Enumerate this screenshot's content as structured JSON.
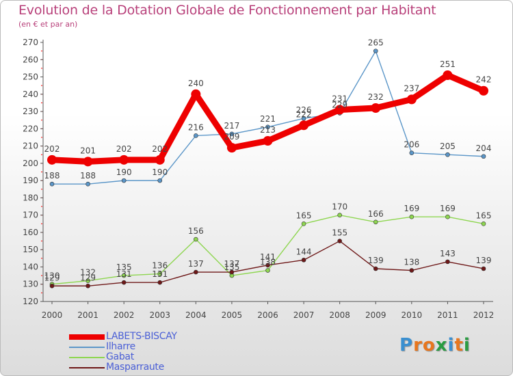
{
  "header": {
    "title": "Evolution de la Dotation Globale de Fonctionnement par Habitant",
    "subtitle": "(en € et par an)"
  },
  "logo": {
    "text": "Proxiti",
    "letter_colors": [
      "#3a8fd0",
      "#e8761e",
      "#e8761e",
      "#2a9c42",
      "#3a8fd0",
      "#e8761e",
      "#2a9c42"
    ]
  },
  "colors": {
    "axis": "#555555",
    "grid_tick": "#ff0000",
    "label": "#444444"
  },
  "chart_data": {
    "type": "line",
    "title": "Evolution de la Dotation Globale de Fonctionnement par Habitant",
    "subtitle": "(en € et par an)",
    "xlabel": "",
    "ylabel": "",
    "ylim": [
      120,
      270
    ],
    "ytick_step": 10,
    "categories": [
      "2000",
      "2001",
      "2002",
      "2003",
      "2004",
      "2005",
      "2006",
      "2007",
      "2008",
      "2009",
      "2010",
      "2011",
      "2012"
    ],
    "legend_position": "bottom-left",
    "series": [
      {
        "name": "LABETS-BISCAY",
        "color": "#ee0000",
        "bold": true,
        "values": [
          202,
          201,
          202,
          202,
          240,
          209,
          213,
          222,
          231,
          232,
          237,
          251,
          242
        ]
      },
      {
        "name": "Ilharre",
        "color": "#5b96c8",
        "values": [
          188,
          188,
          190,
          190,
          216,
          217,
          221,
          226,
          229,
          265,
          206,
          205,
          204
        ]
      },
      {
        "name": "Gabat",
        "color": "#8ed650",
        "values": [
          130,
          132,
          135,
          136,
          156,
          135,
          138,
          165,
          170,
          166,
          169,
          169,
          165
        ]
      },
      {
        "name": "Masparraute",
        "color": "#6e1818",
        "values": [
          129,
          129,
          131,
          131,
          137,
          137,
          141,
          144,
          155,
          139,
          138,
          143,
          139
        ]
      }
    ]
  }
}
